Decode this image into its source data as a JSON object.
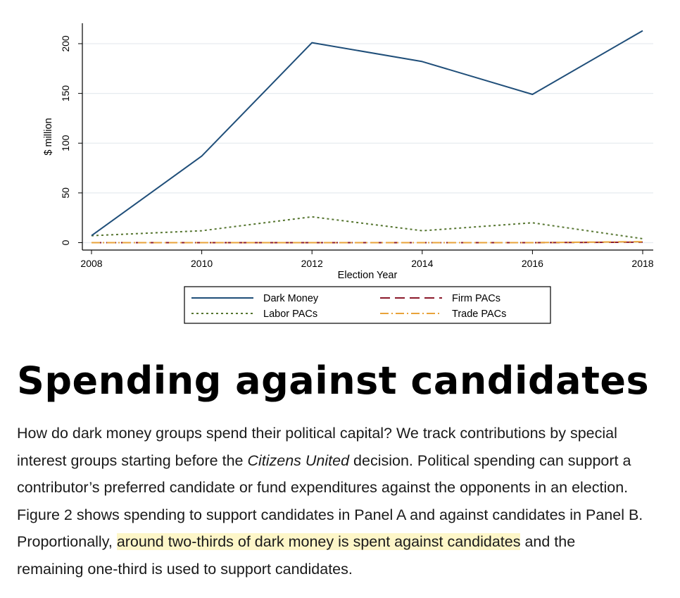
{
  "chart_data": {
    "type": "line",
    "title": "",
    "xlabel": "Election Year",
    "ylabel": "$ million",
    "x": [
      2008,
      2010,
      2012,
      2014,
      2016,
      2018
    ],
    "xlim": [
      2008,
      2018
    ],
    "ylim": [
      0,
      220
    ],
    "xticks": [
      "2008",
      "2010",
      "2012",
      "2014",
      "2016",
      "2018"
    ],
    "yticks": [
      "0",
      "50",
      "100",
      "150",
      "200"
    ],
    "grid": "horizontal",
    "legend_position": "bottom",
    "series": [
      {
        "name": "Dark Money",
        "values": [
          7,
          87,
          201,
          182,
          149,
          213
        ],
        "color": "#1f4e79",
        "dash": "solid"
      },
      {
        "name": "Firm PACs",
        "values": [
          0,
          0,
          0,
          0,
          0,
          0.5
        ],
        "color": "#8b1a2b",
        "dash": "dash"
      },
      {
        "name": "Labor PACs",
        "values": [
          7,
          12,
          26,
          12,
          20,
          4
        ],
        "color": "#55752f",
        "dash": "dot"
      },
      {
        "name": "Trade PACs",
        "values": [
          0,
          0,
          0,
          0,
          0,
          1
        ],
        "color": "#e8a33a",
        "dash": "dashdot"
      }
    ]
  },
  "heading": "Spending against candidates",
  "paragraph": {
    "line1": "How do dark money groups spend their political capital? We track contributions by special",
    "line2_a": "interest groups starting before the ",
    "line2_italic": "Citizens United",
    "line2_b": " decision. Political spending can support a",
    "line3": "contributor’s preferred candidate or fund expenditures against the opponents in an election.",
    "line4": "Figure 2 shows spending to support candidates in Panel A and against candidates in Panel B.",
    "line5_a": "Proportionally, ",
    "line5_highlight": "around two-thirds of dark money is spent against candidates",
    "line5_b": " and the",
    "line6": "remaining one-third is used to support candidates."
  }
}
